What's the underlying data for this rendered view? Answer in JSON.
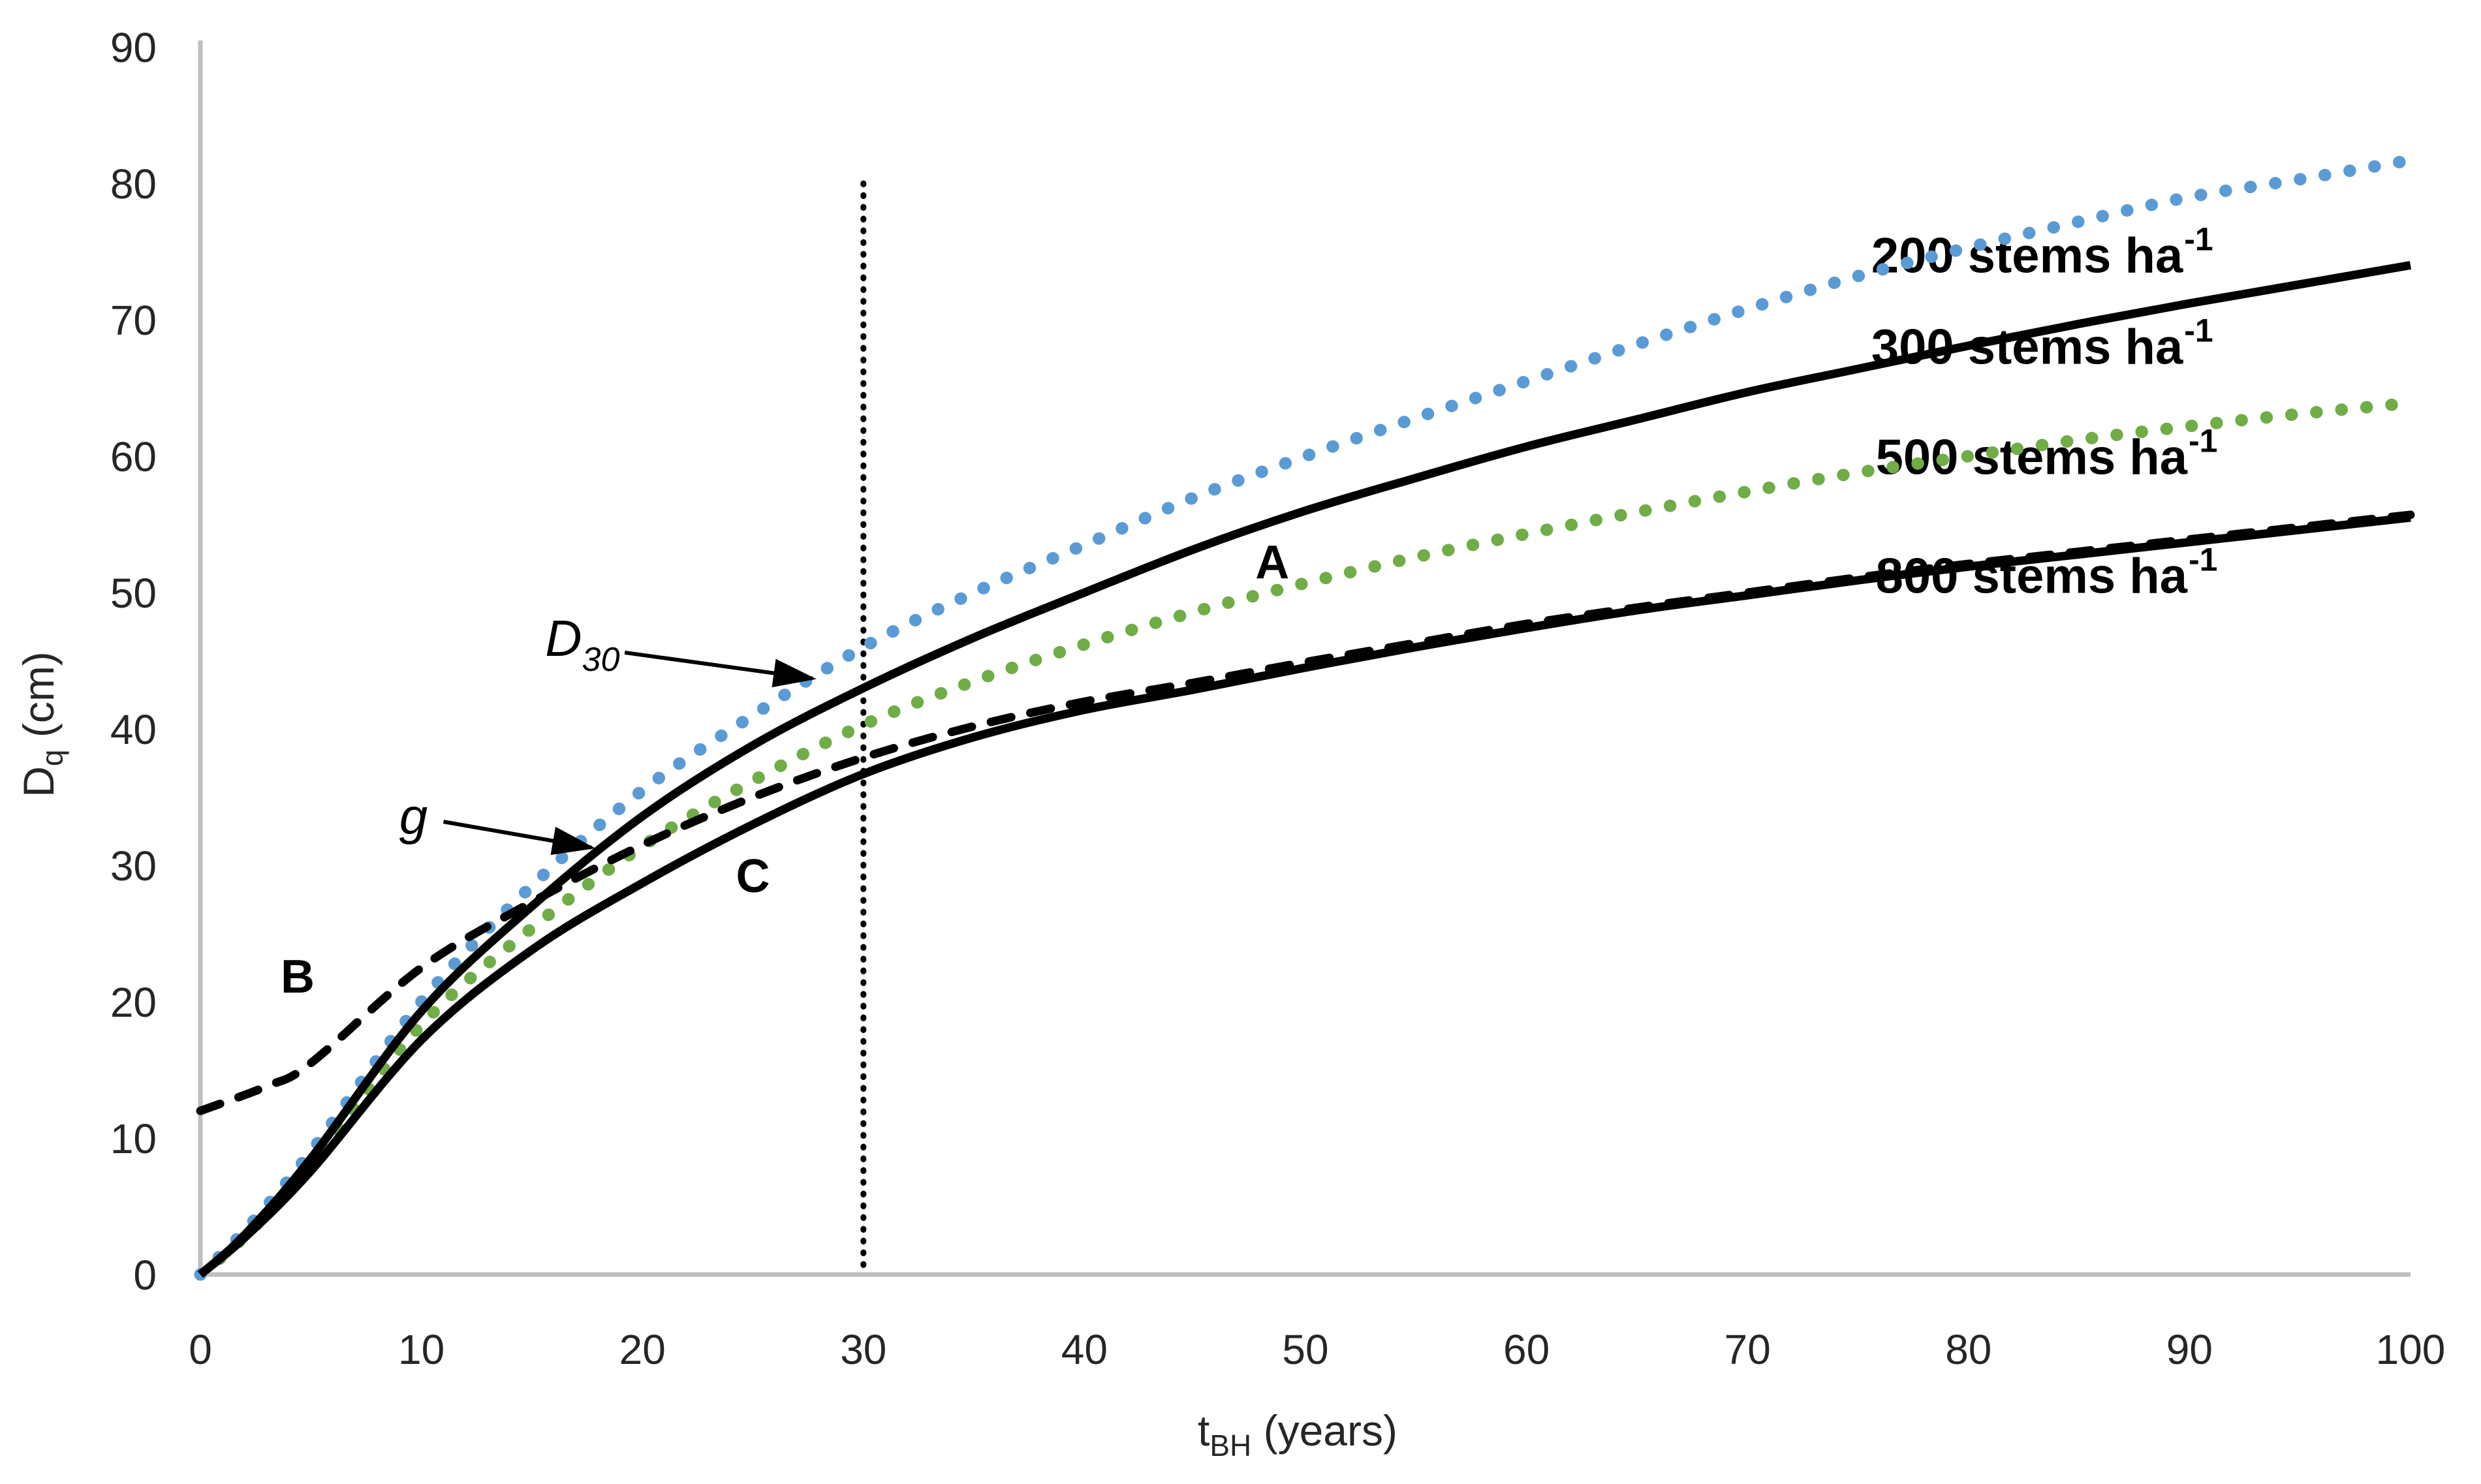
{
  "chart_data": {
    "type": "line",
    "title": "",
    "xlabel": {
      "main": "t",
      "sub": "BH",
      "rest": " (years)"
    },
    "ylabel": {
      "main": "D",
      "sub": "q",
      "rest": " (cm)"
    },
    "xlim": [
      0,
      100
    ],
    "ylim": [
      0,
      90
    ],
    "x_ticks": [
      0,
      10,
      20,
      30,
      40,
      50,
      60,
      70,
      80,
      90,
      100
    ],
    "y_ticks": [
      0,
      10,
      20,
      30,
      40,
      50,
      60,
      70,
      80,
      90
    ],
    "grid": false,
    "legend_position": "inline-right-labels",
    "colors": {
      "blue": "#5B9BD5",
      "green": "#70AD47",
      "black": "#000000",
      "axis": "#BFBFBF",
      "tick_text": "#262626"
    },
    "reference_line": {
      "x": 30,
      "style": "dotted",
      "color_key": "black",
      "v_top": 80
    },
    "series": [
      {
        "name": "200 stems ha-1",
        "density_stems_per_ha": 200,
        "style": "dotted",
        "color_key": "blue",
        "label": {
          "text": "200 stems ha",
          "sup": "-1",
          "at_t": 75.6,
          "at_v": 74.8
        },
        "points": [
          [
            0,
            0
          ],
          [
            2,
            3.2
          ],
          [
            5,
            9
          ],
          [
            10,
            20
          ],
          [
            15,
            28.5
          ],
          [
            20,
            35.5
          ],
          [
            25,
            41
          ],
          [
            30,
            46
          ],
          [
            35,
            50
          ],
          [
            40,
            53.5
          ],
          [
            45,
            57
          ],
          [
            50,
            60
          ],
          [
            55,
            62.8
          ],
          [
            60,
            65.5
          ],
          [
            65,
            68.2
          ],
          [
            70,
            70.8
          ],
          [
            75,
            73.2
          ],
          [
            80,
            75.3
          ],
          [
            85,
            77.2
          ],
          [
            90,
            79
          ],
          [
            95,
            80.3
          ],
          [
            100,
            81.7
          ]
        ]
      },
      {
        "name": "300 stems ha-1",
        "density_stems_per_ha": 300,
        "style": "solid",
        "color_key": "black",
        "label": {
          "text": "300 stems ha",
          "sup": "-1",
          "at_t": 75.6,
          "at_v": 68.1
        },
        "points": [
          [
            0,
            0
          ],
          [
            2,
            2.9
          ],
          [
            5,
            8.5
          ],
          [
            10,
            19.3
          ],
          [
            15,
            27
          ],
          [
            20,
            33.6
          ],
          [
            25,
            38.8
          ],
          [
            30,
            43
          ],
          [
            35,
            46.7
          ],
          [
            40,
            50
          ],
          [
            45,
            53.2
          ],
          [
            50,
            56
          ],
          [
            55,
            58.4
          ],
          [
            60,
            60.7
          ],
          [
            65,
            62.7
          ],
          [
            70,
            64.7
          ],
          [
            75,
            66.4
          ],
          [
            80,
            68.1
          ],
          [
            85,
            69.7
          ],
          [
            90,
            71.2
          ],
          [
            95,
            72.6
          ],
          [
            100,
            74
          ]
        ]
      },
      {
        "name": "500 stems ha-1",
        "density_stems_per_ha": 500,
        "style": "dotted",
        "color_key": "green",
        "label": {
          "text": "500 stems ha",
          "sup": "-1",
          "at_t": 75.8,
          "at_v": 60.0
        },
        "points": [
          [
            0,
            0
          ],
          [
            2,
            2.8
          ],
          [
            5,
            8
          ],
          [
            10,
            18.3
          ],
          [
            15,
            25.4
          ],
          [
            20,
            31.4
          ],
          [
            25,
            36.2
          ],
          [
            30,
            40.3
          ],
          [
            35,
            43.5
          ],
          [
            40,
            46.2
          ],
          [
            45,
            48.6
          ],
          [
            50,
            50.7
          ],
          [
            55,
            52.6
          ],
          [
            60,
            54.3
          ],
          [
            65,
            55.9
          ],
          [
            70,
            57.4
          ],
          [
            75,
            58.8
          ],
          [
            80,
            60
          ],
          [
            85,
            61.2
          ],
          [
            90,
            62.2
          ],
          [
            95,
            63.1
          ],
          [
            100,
            63.9
          ]
        ]
      },
      {
        "name": "800 stems ha-1 (curve B, dashed)",
        "density_stems_per_ha": 800,
        "style": "dashed",
        "color_key": "black",
        "points": [
          [
            0,
            12
          ],
          [
            3,
            13.8
          ],
          [
            5,
            15.5
          ],
          [
            10,
            22.5
          ],
          [
            15,
            27.3
          ],
          [
            20,
            31.5
          ],
          [
            25,
            35
          ],
          [
            30,
            37.9
          ],
          [
            35,
            40.2
          ],
          [
            40,
            42
          ],
          [
            45,
            43.4
          ],
          [
            50,
            44.9
          ],
          [
            55,
            46.3
          ],
          [
            60,
            47.7
          ],
          [
            65,
            48.9
          ],
          [
            70,
            50
          ],
          [
            75,
            51.1
          ],
          [
            80,
            52.1
          ],
          [
            85,
            53
          ],
          [
            90,
            53.9
          ],
          [
            95,
            54.8
          ],
          [
            100,
            55.7
          ]
        ]
      },
      {
        "name": "800 stems ha-1 (curve C, solid)",
        "density_stems_per_ha": 800,
        "style": "solid",
        "color_key": "black",
        "label": {
          "text": "800 stems ha",
          "sup": "-1",
          "at_t": 75.8,
          "at_v": 51.3
        },
        "points": [
          [
            0,
            0
          ],
          [
            2,
            2.7
          ],
          [
            5,
            7.6
          ],
          [
            10,
            17.2
          ],
          [
            15,
            23.8
          ],
          [
            20,
            28.7
          ],
          [
            25,
            33
          ],
          [
            30,
            36.7
          ],
          [
            35,
            39.4
          ],
          [
            40,
            41.4
          ],
          [
            45,
            42.9
          ],
          [
            50,
            44.5
          ],
          [
            55,
            46
          ],
          [
            60,
            47.4
          ],
          [
            65,
            48.7
          ],
          [
            70,
            49.8
          ],
          [
            75,
            50.9
          ],
          [
            80,
            51.9
          ],
          [
            85,
            52.8
          ],
          [
            90,
            53.7
          ],
          [
            95,
            54.6
          ],
          [
            100,
            55.5
          ]
        ]
      }
    ],
    "annotations": {
      "A": {
        "text": "A",
        "t": 48.5,
        "v": 52.2
      },
      "B": {
        "text": "B",
        "t": 4.4,
        "v": 21.8
      },
      "C": {
        "text": "C",
        "t": 25.0,
        "v": 29.2
      },
      "D30": {
        "text": "D",
        "sub": "30",
        "t": 15.6,
        "v": 46.3,
        "arrow": {
          "from": [
            19.2,
            45.6
          ],
          "to": [
            27.7,
            43.7
          ]
        }
      },
      "g": {
        "text": "g",
        "t": 9.0,
        "v": 33.6,
        "arrow": {
          "from": [
            11.0,
            33.2
          ],
          "to": [
            17.7,
            31.3
          ]
        }
      }
    }
  }
}
